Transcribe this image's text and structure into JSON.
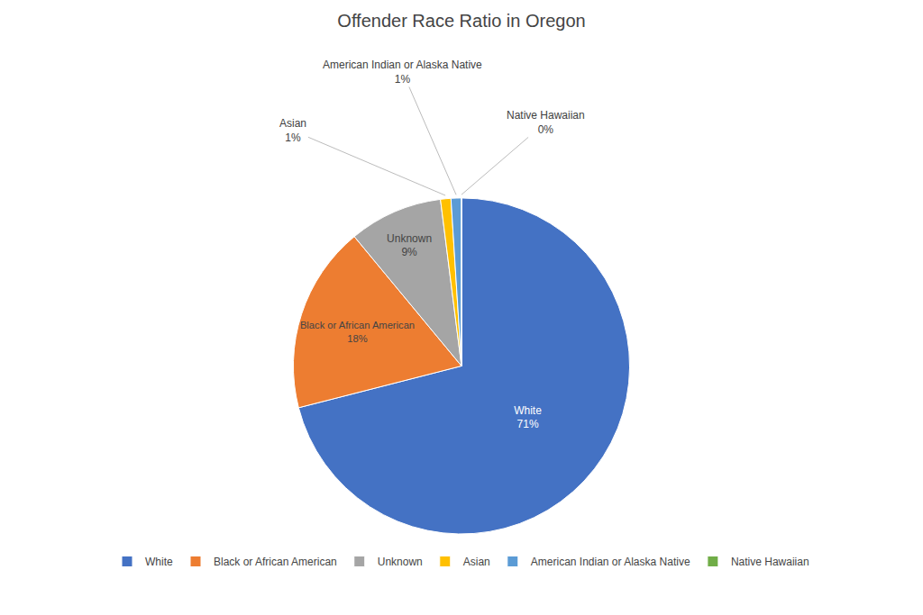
{
  "chart_data": {
    "type": "pie",
    "title": "Offender Race Ratio in Oregon",
    "categories": [
      "White",
      "Black or African American",
      "Unknown",
      "Asian",
      "American Indian or Alaska Native",
      "Native Hawaiian"
    ],
    "values": [
      71,
      18,
      9,
      1,
      1,
      0
    ],
    "value_labels": [
      "71%",
      "18%",
      "9%",
      "1%",
      "1%",
      "0%"
    ],
    "colors": [
      "#4472C4",
      "#ED7D31",
      "#A5A5A5",
      "#FFC000",
      "#5B9BD5",
      "#70AD47"
    ],
    "data_labels": true,
    "legend": "bottom"
  }
}
